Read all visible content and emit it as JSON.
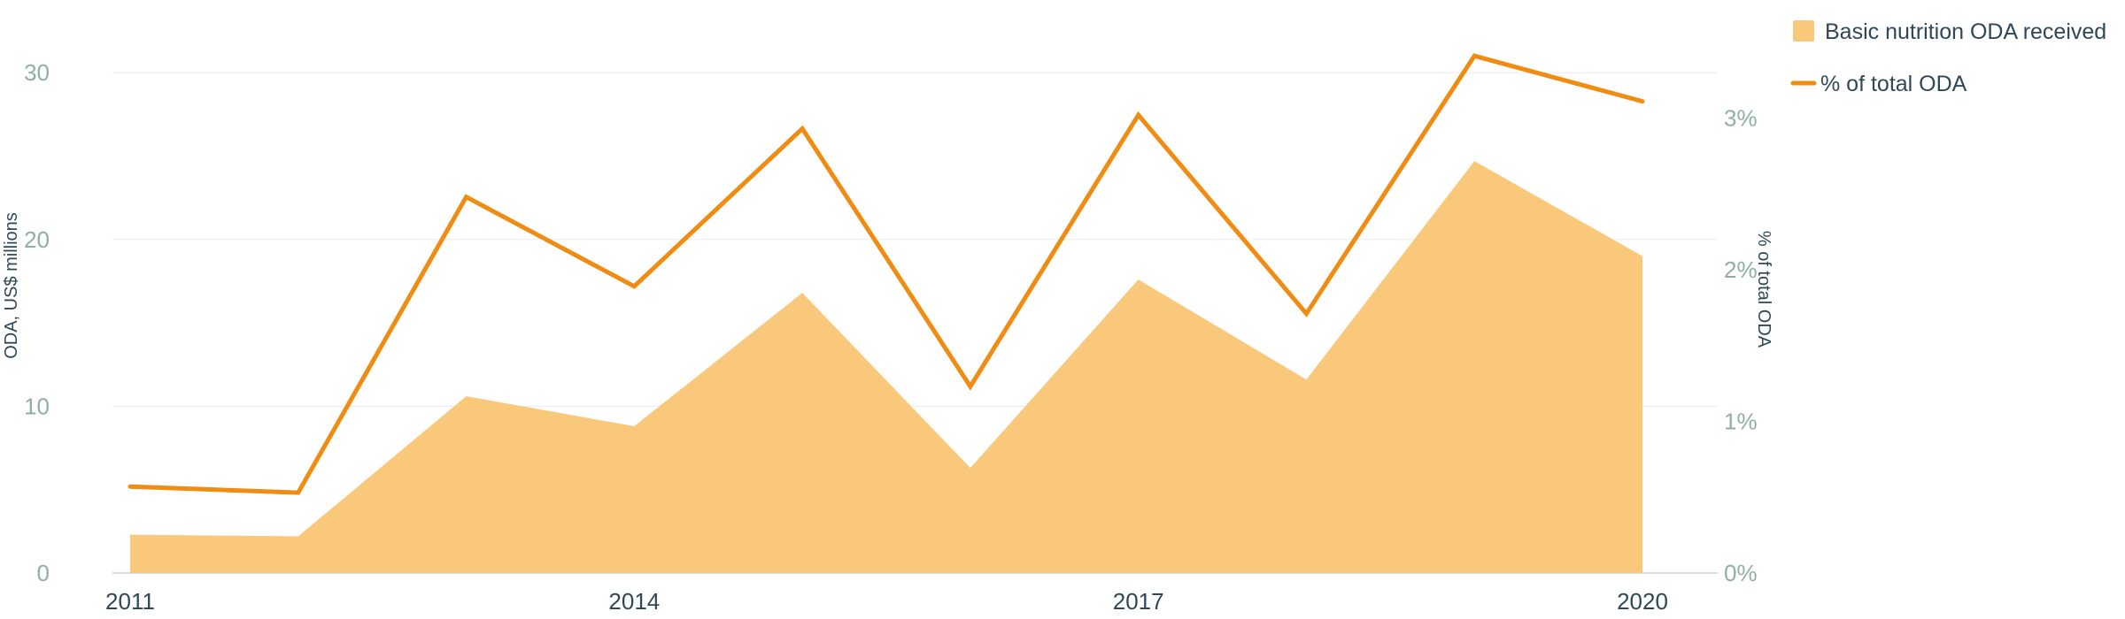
{
  "chart_data": {
    "type": "area",
    "years": [
      2011,
      2012,
      2013,
      2014,
      2015,
      2016,
      2017,
      2018,
      2019,
      2020
    ],
    "series": [
      {
        "name": "Basic nutrition ODA received",
        "kind": "area",
        "axis": "left",
        "values": [
          2.3,
          2.2,
          10.6,
          8.8,
          16.8,
          6.3,
          17.6,
          11.6,
          24.7,
          19.0
        ]
      },
      {
        "name": "% of total ODA",
        "kind": "line",
        "axis": "right",
        "values": [
          0.57,
          0.53,
          2.48,
          1.89,
          2.93,
          1.23,
          3.02,
          1.71,
          3.41,
          3.11
        ]
      }
    ],
    "x_ticks": [
      {
        "year": 2011,
        "label": "2011"
      },
      {
        "year": 2014,
        "label": "2014"
      },
      {
        "year": 2017,
        "label": "2017"
      },
      {
        "year": 2020,
        "label": "2020"
      }
    ],
    "y_left": {
      "label": "ODA, US$ millions",
      "range": [
        0,
        32
      ],
      "ticks": [
        {
          "value": 0,
          "label": "0"
        },
        {
          "value": 10,
          "label": "10"
        },
        {
          "value": 20,
          "label": "20"
        },
        {
          "value": 30,
          "label": "30"
        }
      ]
    },
    "y_right": {
      "label": "% of total ODA",
      "range": [
        0,
        3.5
      ],
      "ticks": [
        {
          "value": 0,
          "label": "0%"
        },
        {
          "value": 1,
          "label": "1%"
        },
        {
          "value": 2,
          "label": "2%"
        },
        {
          "value": 3,
          "label": "3%"
        }
      ]
    },
    "legend": {
      "position": "top-right",
      "items": [
        {
          "label": "Basic nutrition ODA received",
          "symbol": "square"
        },
        {
          "label": "% of total ODA",
          "symbol": "line"
        }
      ]
    },
    "colors": {
      "area": "#fac87a",
      "line": "#f08c12",
      "grid": "#ececec"
    },
    "grid": true
  }
}
